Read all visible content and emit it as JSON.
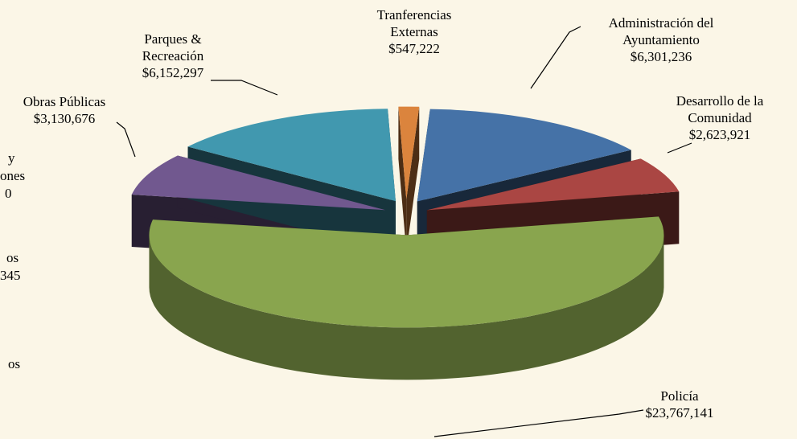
{
  "chart_data": {
    "type": "pie",
    "categories": [
      "Administración del Ayuntamiento",
      "Desarrollo de la Comunidad",
      "Policía",
      "Obras Públicas",
      "Parques & Recreación",
      "Tranferencias Externas"
    ],
    "values": [
      6301236,
      2623921,
      23767141,
      3130676,
      6152297,
      547222
    ],
    "value_labels": [
      "$6,301,236",
      "$2,623,921",
      "$23,767,141",
      "$3,130,676",
      "$6,152,297",
      "$547,222"
    ],
    "colors": [
      "#4572a7",
      "#aa4643",
      "#89a54e",
      "#71588f",
      "#4198af",
      "#db843d"
    ],
    "cropped_labels": [
      "y",
      "ones",
      "0",
      "os",
      "345",
      "os"
    ]
  }
}
